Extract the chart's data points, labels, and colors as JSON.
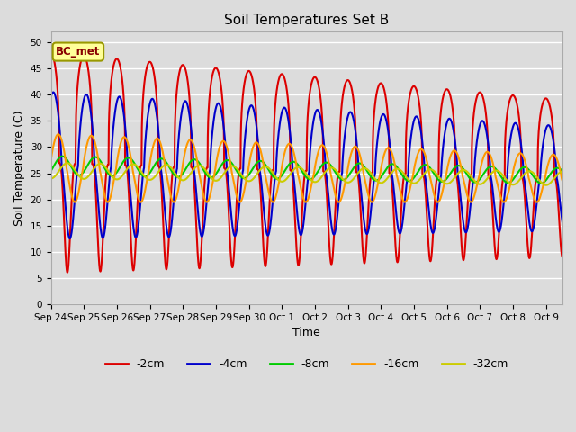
{
  "title": "Soil Temperatures Set B",
  "xlabel": "Time",
  "ylabel": "Soil Temperature (C)",
  "ylim": [
    0,
    52
  ],
  "yticks": [
    0,
    5,
    10,
    15,
    20,
    25,
    30,
    35,
    40,
    45,
    50
  ],
  "annotation": "BC_met",
  "bg_color": "#dcdcdc",
  "plot_bg_color": "#dcdcdc",
  "grid_color": "#ffffff",
  "colors": {
    "-2cm": "#dd0000",
    "-4cm": "#0000cc",
    "-8cm": "#00cc00",
    "-16cm": "#ff9900",
    "-32cm": "#cccc00"
  },
  "line_width": 1.5,
  "x_labels": [
    "Sep 24",
    "Sep 25",
    "Sep 26",
    "Sep 27",
    "Sep 28",
    "Sep 29",
    "Sep 30",
    "Oct 1",
    "Oct 2",
    "Oct 3",
    "Oct 4",
    "Oct 5",
    "Oct 6",
    "Oct 7",
    "Oct 8",
    "Oct 9"
  ],
  "n_days": 15.5,
  "pts_per_day": 288
}
